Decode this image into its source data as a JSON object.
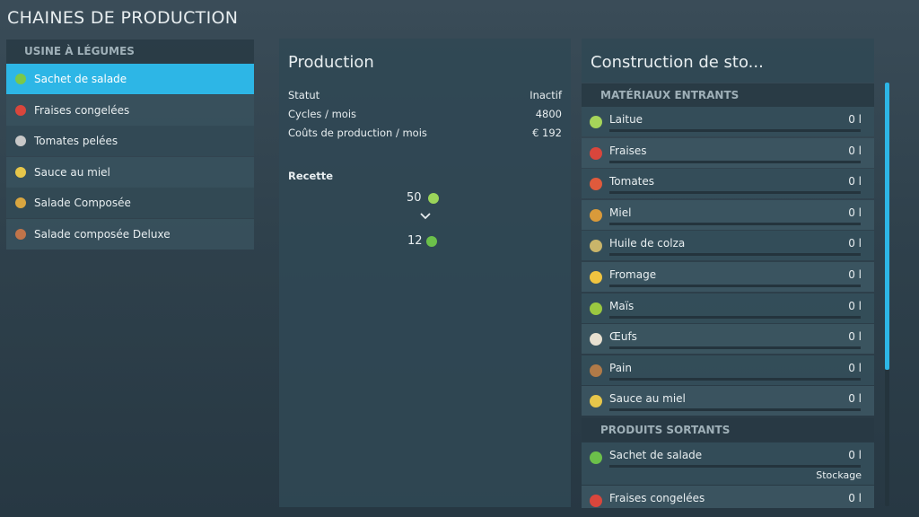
{
  "header": {
    "title": "CHAINES DE PRODUCTION"
  },
  "sidebar": {
    "heading": "USINE À LÉGUMES",
    "items": [
      "Sachet de salade",
      "Fraises congelées",
      "Tomates pelées",
      "Sauce au miel",
      "Salade Composée",
      "Salade composée Deluxe"
    ]
  },
  "production": {
    "title": "Production",
    "stats": [
      {
        "label": "Statut",
        "value": "Inactif"
      },
      {
        "label": "Cycles / mois",
        "value": "4800"
      },
      {
        "label": "Coûts de production / mois",
        "value": "€ 192"
      }
    ],
    "recipe": {
      "title": "Recette",
      "input": "50",
      "output": "12"
    }
  },
  "storage": {
    "title": "Construction de sto...",
    "inputs_heading": "MATÉRIAUX ENTRANTS",
    "inputs": [
      {
        "name": "Laitue",
        "amount": "0 l"
      },
      {
        "name": "Fraises",
        "amount": "0 l"
      },
      {
        "name": "Tomates",
        "amount": "0 l"
      },
      {
        "name": "Miel",
        "amount": "0 l"
      },
      {
        "name": "Huile de colza",
        "amount": "0 l"
      },
      {
        "name": "Fromage",
        "amount": "0 l"
      },
      {
        "name": "Maïs",
        "amount": "0 l"
      },
      {
        "name": "Œufs",
        "amount": "0 l"
      },
      {
        "name": "Pain",
        "amount": "0 l"
      },
      {
        "name": "Sauce au miel",
        "amount": "0 l"
      }
    ],
    "outputs_heading": "PRODUITS SORTANTS",
    "outputs": [
      {
        "name": "Sachet de salade",
        "amount": "0 l",
        "mode": "Stockage"
      },
      {
        "name": "Fraises congelées",
        "amount": "0 l"
      }
    ]
  }
}
